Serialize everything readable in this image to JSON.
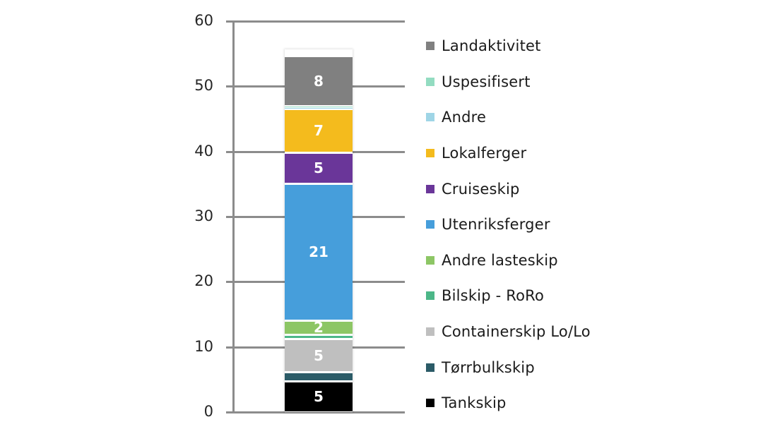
{
  "chart_data": {
    "type": "bar",
    "stacked": true,
    "title": "",
    "xlabel": "",
    "ylabel": "",
    "ylim": [
      0,
      60
    ],
    "yticks": [
      0,
      10,
      20,
      30,
      40,
      50,
      60
    ],
    "grid": true,
    "legend_position": "right",
    "categories": [
      ""
    ],
    "series": [
      {
        "name": "Tankskip",
        "values": [
          4.8
        ],
        "label": "5",
        "color": "#000000"
      },
      {
        "name": "Tørrbulkskip",
        "values": [
          1.4
        ],
        "label": "",
        "color": "#2b5b67"
      },
      {
        "name": "Containerskip Lo/Lo",
        "values": [
          5.1
        ],
        "label": "5",
        "color": "#bfbfbf"
      },
      {
        "name": "Bilskip - RoRo",
        "values": [
          0.6
        ],
        "label": "",
        "color": "#4cb788"
      },
      {
        "name": "Andre lasteskip",
        "values": [
          2.2
        ],
        "label": "2",
        "color": "#8dc665"
      },
      {
        "name": "Utenriksferger",
        "values": [
          21.0
        ],
        "label": "21",
        "color": "#469edb"
      },
      {
        "name": "Cruiseskip",
        "values": [
          4.8
        ],
        "label": "5",
        "color": "#6a3699"
      },
      {
        "name": "Lokalferger",
        "values": [
          6.7
        ],
        "label": "7",
        "color": "#f4bb1d"
      },
      {
        "name": "Andre",
        "values": [
          0.2
        ],
        "label": "",
        "color": "#9fd5e6"
      },
      {
        "name": "Uspesifisert",
        "values": [
          0.2
        ],
        "label": "",
        "color": "#93dcc1"
      },
      {
        "name": "Landaktivitet",
        "values": [
          7.7
        ],
        "label": "8",
        "color": "#808080"
      }
    ]
  },
  "legend": [
    {
      "label": "Landaktivitet",
      "color": "#808080"
    },
    {
      "label": "Uspesifisert",
      "color": "#93dcc1"
    },
    {
      "label": "Andre",
      "color": "#9fd5e6"
    },
    {
      "label": "Lokalferger",
      "color": "#f4bb1d"
    },
    {
      "label": "Cruiseskip",
      "color": "#6a3699"
    },
    {
      "label": "Utenriksferger",
      "color": "#469edb"
    },
    {
      "label": "Andre lasteskip",
      "color": "#8dc665"
    },
    {
      "label": "Bilskip - RoRo",
      "color": "#4cb788"
    },
    {
      "label": "Containerskip Lo/Lo",
      "color": "#bfbfbf"
    },
    {
      "label": "Tørrbulkskip",
      "color": "#2b5b67"
    },
    {
      "label": "Tankskip",
      "color": "#000000"
    }
  ]
}
